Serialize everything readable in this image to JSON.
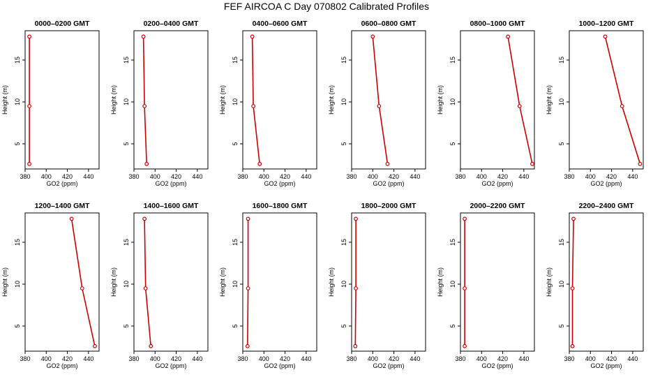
{
  "title": "FEF AIRCOA C  Day 070802  Calibrated Profiles",
  "colors": {
    "profile": "#cc0000",
    "axes": "#000000",
    "background": "#ffffff"
  },
  "chart_data": [
    {
      "type": "line",
      "title": "0000–0200 GMT",
      "xlabel": "GO2 (ppm)",
      "ylabel": "Height (m)",
      "xlim": [
        380,
        450
      ],
      "ylim": [
        2,
        18.5
      ],
      "xticks": [
        380,
        400,
        420,
        440
      ],
      "xtick_labels": [
        "380",
        "400",
        "420",
        "440"
      ],
      "yticks": [
        5,
        10,
        15
      ],
      "ytick_labels": [
        "5",
        "10",
        "15"
      ],
      "grid": false,
      "x": [
        384,
        384,
        384
      ],
      "y": [
        17.8,
        9.5,
        2.6
      ]
    },
    {
      "type": "line",
      "title": "0200–0400 GMT",
      "xlabel": "GO2 (ppm)",
      "ylabel": "Height (m)",
      "xlim": [
        380,
        450
      ],
      "ylim": [
        2,
        18.5
      ],
      "xticks": [
        380,
        400,
        420,
        440
      ],
      "xtick_labels": [
        "380",
        "400",
        "420",
        "440"
      ],
      "yticks": [
        5,
        10,
        15
      ],
      "ytick_labels": [
        "5",
        "10",
        "15"
      ],
      "grid": false,
      "x": [
        389,
        390,
        392
      ],
      "y": [
        17.8,
        9.5,
        2.6
      ]
    },
    {
      "type": "line",
      "title": "0400–0600 GMT",
      "xlabel": "GO2 (ppm)",
      "ylabel": "Height (m)",
      "xlim": [
        380,
        450
      ],
      "ylim": [
        2,
        18.5
      ],
      "xticks": [
        380,
        400,
        420,
        440
      ],
      "xtick_labels": [
        "380",
        "400",
        "420",
        "440"
      ],
      "yticks": [
        5,
        10,
        15
      ],
      "ytick_labels": [
        "5",
        "10",
        "15"
      ],
      "grid": false,
      "x": [
        389,
        390,
        396
      ],
      "y": [
        17.8,
        9.5,
        2.6
      ]
    },
    {
      "type": "line",
      "title": "0600–0800 GMT",
      "xlabel": "GO2 (ppm)",
      "ylabel": "Height (m)",
      "xlim": [
        380,
        450
      ],
      "ylim": [
        2,
        18.5
      ],
      "xticks": [
        380,
        400,
        420,
        440
      ],
      "xtick_labels": [
        "380",
        "400",
        "420",
        "440"
      ],
      "yticks": [
        5,
        10,
        15
      ],
      "ytick_labels": [
        "5",
        "10",
        "15"
      ],
      "grid": false,
      "x": [
        400,
        406,
        414
      ],
      "y": [
        17.8,
        9.5,
        2.6
      ]
    },
    {
      "type": "line",
      "title": "0800–1000 GMT",
      "xlabel": "GO2 (ppm)",
      "ylabel": "Height (m)",
      "xlim": [
        380,
        450
      ],
      "ylim": [
        2,
        18.5
      ],
      "xticks": [
        380,
        400,
        420,
        440
      ],
      "xtick_labels": [
        "380",
        "400",
        "420",
        "440"
      ],
      "yticks": [
        5,
        10,
        15
      ],
      "ytick_labels": [
        "5",
        "10",
        "15"
      ],
      "grid": false,
      "x": [
        425,
        436,
        448
      ],
      "y": [
        17.8,
        9.5,
        2.6
      ]
    },
    {
      "type": "line",
      "title": "1000–1200 GMT",
      "xlabel": "GO2 (ppm)",
      "ylabel": "Height (m)",
      "xlim": [
        380,
        450
      ],
      "ylim": [
        2,
        18.5
      ],
      "xticks": [
        380,
        400,
        420,
        440
      ],
      "xtick_labels": [
        "380",
        "400",
        "420",
        "440"
      ],
      "yticks": [
        5,
        10,
        15
      ],
      "ytick_labels": [
        "5",
        "10",
        "15"
      ],
      "grid": false,
      "x": [
        414,
        430,
        447
      ],
      "y": [
        17.8,
        9.5,
        2.6
      ]
    },
    {
      "type": "line",
      "title": "1200–1400 GMT",
      "xlabel": "GO2 (ppm)",
      "ylabel": "Height (m)",
      "xlim": [
        380,
        450
      ],
      "ylim": [
        2,
        18.5
      ],
      "xticks": [
        380,
        400,
        420,
        440
      ],
      "xtick_labels": [
        "380",
        "400",
        "420",
        "440"
      ],
      "yticks": [
        5,
        10,
        15
      ],
      "ytick_labels": [
        "5",
        "10",
        "15"
      ],
      "grid": false,
      "x": [
        424,
        434,
        446
      ],
      "y": [
        17.8,
        9.5,
        2.6
      ]
    },
    {
      "type": "line",
      "title": "1400–1600 GMT",
      "xlabel": "GO2 (ppm)",
      "ylabel": "Height (m)",
      "xlim": [
        380,
        450
      ],
      "ylim": [
        2,
        18.5
      ],
      "xticks": [
        380,
        400,
        420,
        440
      ],
      "xtick_labels": [
        "380",
        "400",
        "420",
        "440"
      ],
      "yticks": [
        5,
        10,
        15
      ],
      "ytick_labels": [
        "5",
        "10",
        "15"
      ],
      "grid": false,
      "x": [
        390,
        391,
        396
      ],
      "y": [
        17.8,
        9.5,
        2.6
      ]
    },
    {
      "type": "line",
      "title": "1600–1800 GMT",
      "xlabel": "GO2 (ppm)",
      "ylabel": "Height (m)",
      "xlim": [
        380,
        450
      ],
      "ylim": [
        2,
        18.5
      ],
      "xticks": [
        380,
        400,
        420,
        440
      ],
      "xtick_labels": [
        "380",
        "400",
        "420",
        "440"
      ],
      "yticks": [
        5,
        10,
        15
      ],
      "ytick_labels": [
        "5",
        "10",
        "15"
      ],
      "grid": false,
      "x": [
        385,
        385,
        384.5
      ],
      "y": [
        17.8,
        9.5,
        2.6
      ]
    },
    {
      "type": "line",
      "title": "1800–2000 GMT",
      "xlabel": "GO2 (ppm)",
      "ylabel": "Height (m)",
      "xlim": [
        380,
        450
      ],
      "ylim": [
        2,
        18.5
      ],
      "xticks": [
        380,
        400,
        420,
        440
      ],
      "xtick_labels": [
        "380",
        "400",
        "420",
        "440"
      ],
      "yticks": [
        5,
        10,
        15
      ],
      "ytick_labels": [
        "5",
        "10",
        "15"
      ],
      "grid": false,
      "x": [
        384,
        384,
        383.5
      ],
      "y": [
        17.8,
        9.5,
        2.6
      ]
    },
    {
      "type": "line",
      "title": "2000–2200 GMT",
      "xlabel": "GO2 (ppm)",
      "ylabel": "Height (m)",
      "xlim": [
        380,
        450
      ],
      "ylim": [
        2,
        18.5
      ],
      "xticks": [
        380,
        400,
        420,
        440
      ],
      "xtick_labels": [
        "380",
        "400",
        "420",
        "440"
      ],
      "yticks": [
        5,
        10,
        15
      ],
      "ytick_labels": [
        "5",
        "10",
        "15"
      ],
      "grid": false,
      "x": [
        384,
        384,
        384
      ],
      "y": [
        17.8,
        9.5,
        2.6
      ]
    },
    {
      "type": "line",
      "title": "2200–2400 GMT",
      "xlabel": "GO2 (ppm)",
      "ylabel": "Height (m)",
      "xlim": [
        380,
        450
      ],
      "ylim": [
        2,
        18.5
      ],
      "xticks": [
        380,
        400,
        420,
        440
      ],
      "xtick_labels": [
        "380",
        "400",
        "420",
        "440"
      ],
      "yticks": [
        5,
        10,
        15
      ],
      "ytick_labels": [
        "5",
        "10",
        "15"
      ],
      "grid": false,
      "x": [
        384,
        383,
        383
      ],
      "y": [
        17.8,
        9.5,
        2.6
      ]
    }
  ]
}
